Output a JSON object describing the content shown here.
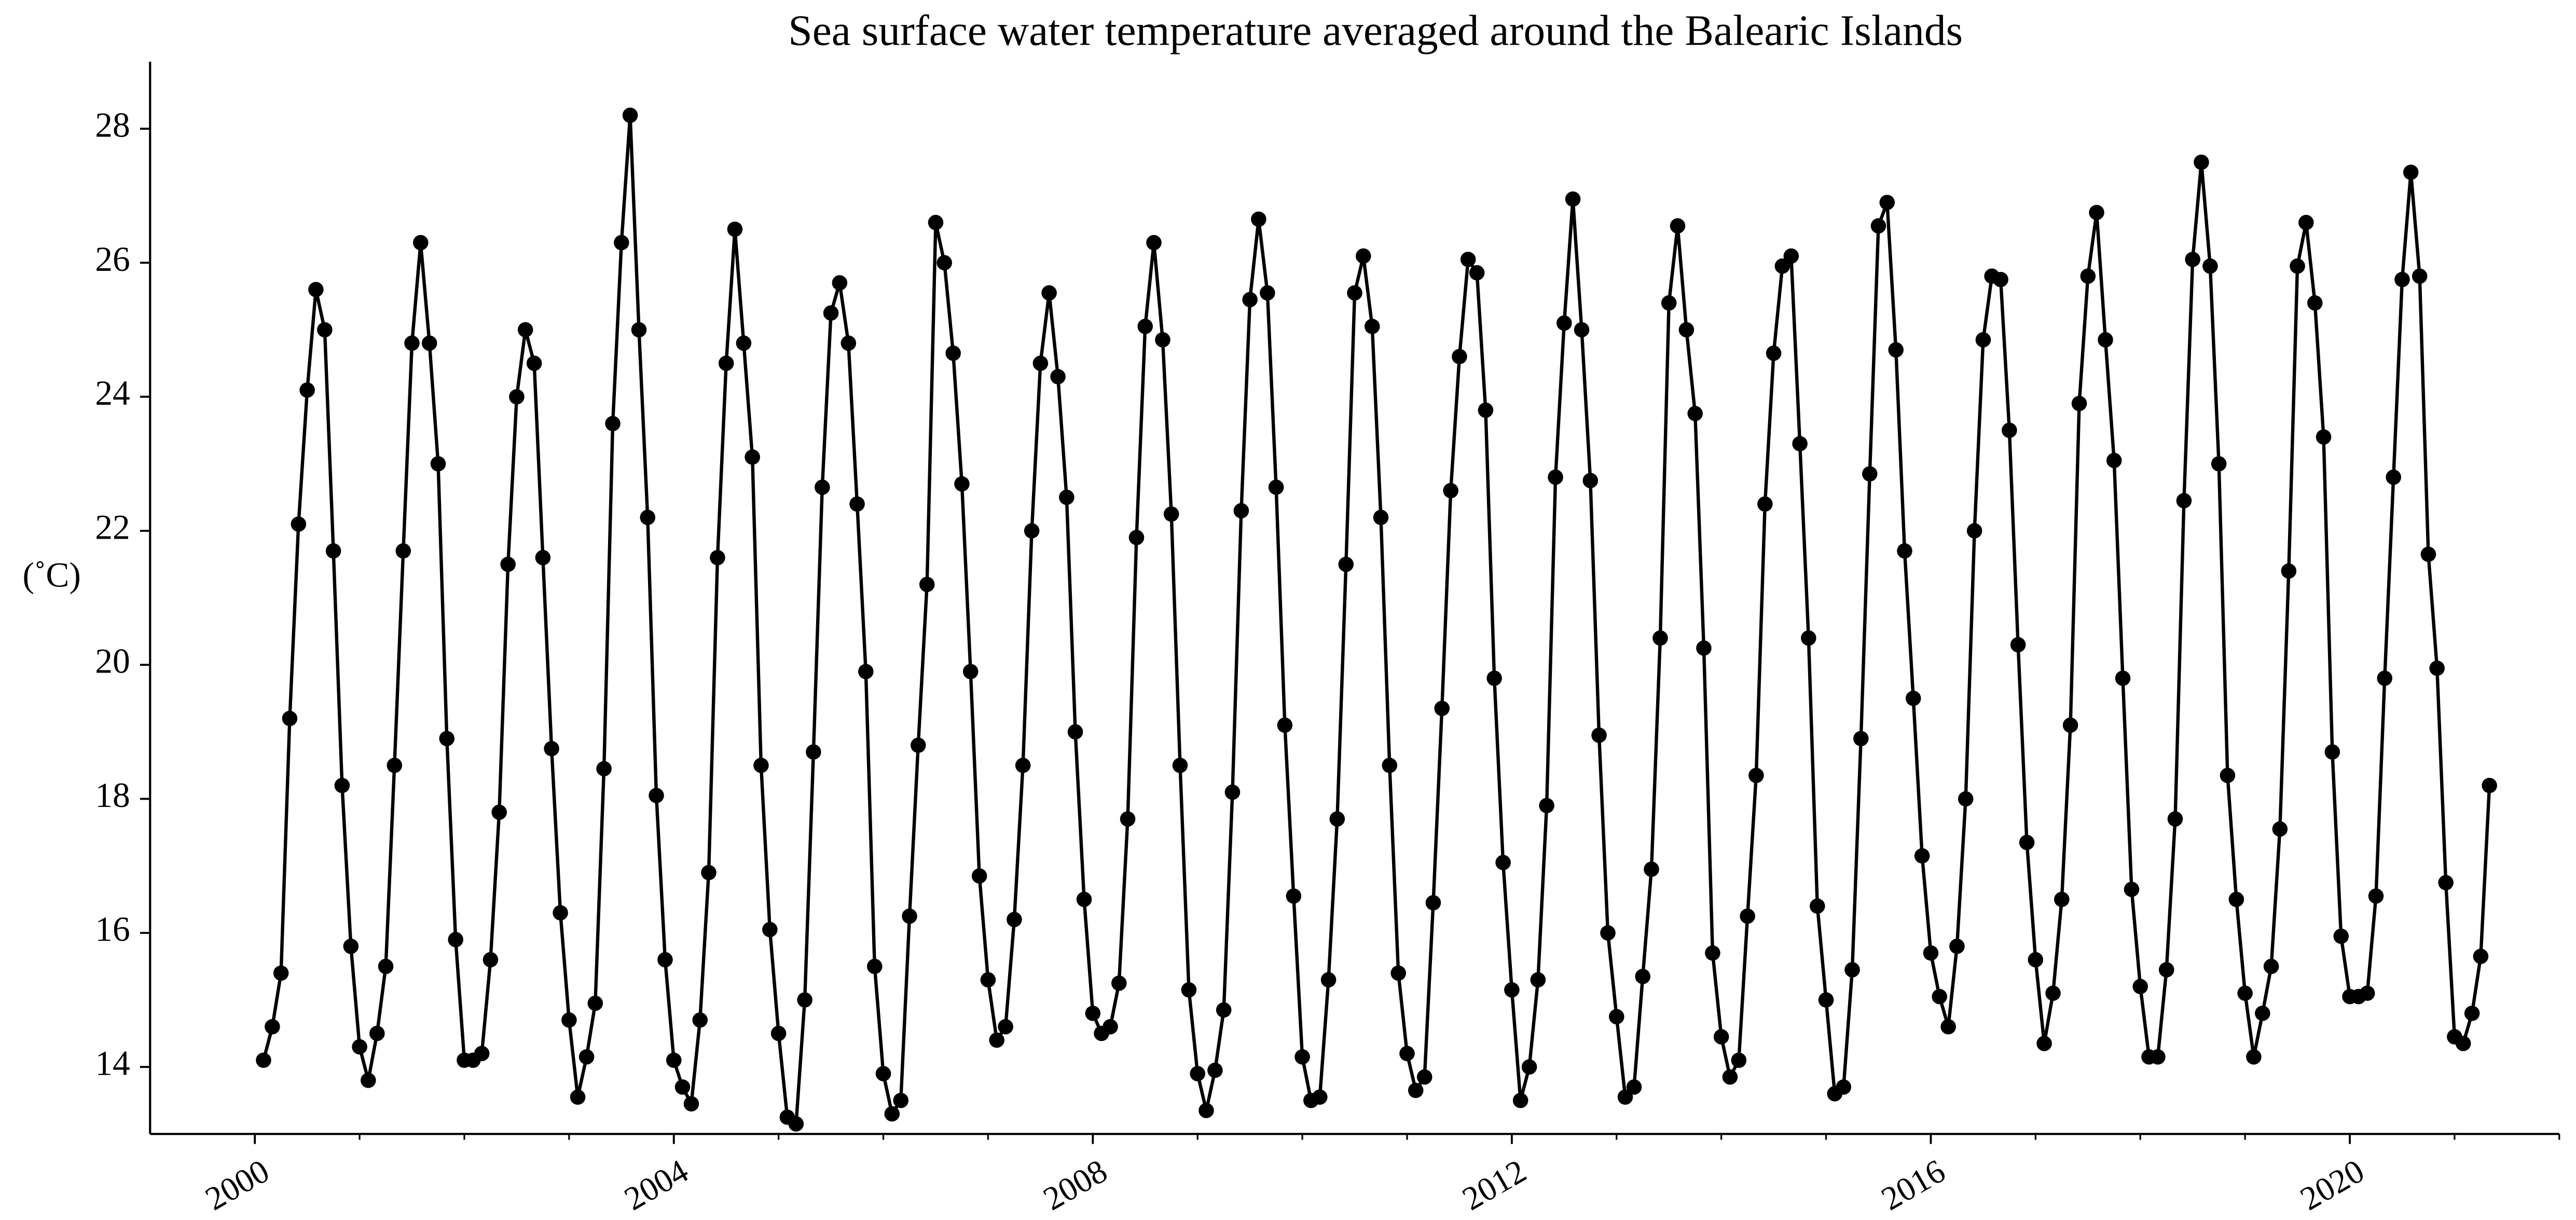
{
  "chart_data": {
    "type": "line",
    "title": "Sea surface water temperature averaged around the Balearic Islands",
    "ylabel": "(˚C)",
    "color": "#000000",
    "x": [
      2000.083,
      2000.167,
      2000.25,
      2000.333,
      2000.417,
      2000.5,
      2000.583,
      2000.667,
      2000.75,
      2000.833,
      2000.917,
      2001,
      2001.083,
      2001.167,
      2001.25,
      2001.333,
      2001.417,
      2001.5,
      2001.583,
      2001.667,
      2001.75,
      2001.833,
      2001.917,
      2002,
      2002.083,
      2002.167,
      2002.25,
      2002.333,
      2002.417,
      2002.5,
      2002.583,
      2002.667,
      2002.75,
      2002.833,
      2002.917,
      2003,
      2003.083,
      2003.167,
      2003.25,
      2003.333,
      2003.417,
      2003.5,
      2003.583,
      2003.667,
      2003.75,
      2003.833,
      2003.917,
      2004,
      2004.083,
      2004.167,
      2004.25,
      2004.333,
      2004.417,
      2004.5,
      2004.583,
      2004.667,
      2004.75,
      2004.833,
      2004.917,
      2005,
      2005.083,
      2005.167,
      2005.25,
      2005.333,
      2005.417,
      2005.5,
      2005.583,
      2005.667,
      2005.75,
      2005.833,
      2005.917,
      2006,
      2006.083,
      2006.167,
      2006.25,
      2006.333,
      2006.417,
      2006.5,
      2006.583,
      2006.667,
      2006.75,
      2006.833,
      2006.917,
      2007,
      2007.083,
      2007.167,
      2007.25,
      2007.333,
      2007.417,
      2007.5,
      2007.583,
      2007.667,
      2007.75,
      2007.833,
      2007.917,
      2008,
      2008.083,
      2008.167,
      2008.25,
      2008.333,
      2008.417,
      2008.5,
      2008.583,
      2008.667,
      2008.75,
      2008.833,
      2008.917,
      2009,
      2009.083,
      2009.167,
      2009.25,
      2009.333,
      2009.417,
      2009.5,
      2009.583,
      2009.667,
      2009.75,
      2009.833,
      2009.917,
      2010,
      2010.083,
      2010.167,
      2010.25,
      2010.333,
      2010.417,
      2010.5,
      2010.583,
      2010.667,
      2010.75,
      2010.833,
      2010.917,
      2011,
      2011.083,
      2011.167,
      2011.25,
      2011.333,
      2011.417,
      2011.5,
      2011.583,
      2011.667,
      2011.75,
      2011.833,
      2011.917,
      2012,
      2012.083,
      2012.167,
      2012.25,
      2012.333,
      2012.417,
      2012.5,
      2012.583,
      2012.667,
      2012.75,
      2012.833,
      2012.917,
      2013,
      2013.083,
      2013.167,
      2013.25,
      2013.333,
      2013.417,
      2013.5,
      2013.583,
      2013.667,
      2013.75,
      2013.833,
      2013.917,
      2014,
      2014.083,
      2014.167,
      2014.25,
      2014.333,
      2014.417,
      2014.5,
      2014.583,
      2014.667,
      2014.75,
      2014.833,
      2014.917,
      2015,
      2015.083,
      2015.167,
      2015.25,
      2015.333,
      2015.417,
      2015.5,
      2015.583,
      2015.667,
      2015.75,
      2015.833,
      2015.917,
      2016,
      2016.083,
      2016.167,
      2016.25,
      2016.333,
      2016.417,
      2016.5,
      2016.583,
      2016.667,
      2016.75,
      2016.833,
      2016.917,
      2017,
      2017.083,
      2017.167,
      2017.25,
      2017.333,
      2017.417,
      2017.5,
      2017.583,
      2017.667,
      2017.75,
      2017.833,
      2017.917,
      2018,
      2018.083,
      2018.167,
      2018.25,
      2018.333,
      2018.417,
      2018.5,
      2018.583,
      2018.667,
      2018.75,
      2018.833,
      2018.917,
      2019,
      2019.083,
      2019.167,
      2019.25,
      2019.333,
      2019.417,
      2019.5,
      2019.583,
      2019.667,
      2019.75,
      2019.833,
      2019.917,
      2020,
      2020.083,
      2020.167,
      2020.25,
      2020.333,
      2020.417,
      2020.5,
      2020.583,
      2020.667,
      2020.75,
      2020.833,
      2020.917,
      2021,
      2021.083,
      2021.167,
      2021.25,
      2021.333
    ],
    "values": [
      14.1,
      14.6,
      15.4,
      19.2,
      22.1,
      24.1,
      25.6,
      25.0,
      21.7,
      18.2,
      15.8,
      14.3,
      13.8,
      14.5,
      15.5,
      18.5,
      21.7,
      24.8,
      26.3,
      24.8,
      23.0,
      18.9,
      15.9,
      14.1,
      14.1,
      14.2,
      15.6,
      17.8,
      21.5,
      24.0,
      25.0,
      24.5,
      21.6,
      18.75,
      16.3,
      14.7,
      13.55,
      14.15,
      14.95,
      18.45,
      23.6,
      26.3,
      28.2,
      25.0,
      22.2,
      18.05,
      15.6,
      14.1,
      13.7,
      13.45,
      14.7,
      16.9,
      21.6,
      24.5,
      26.5,
      24.8,
      23.1,
      18.5,
      16.05,
      14.5,
      13.25,
      13.15,
      15.0,
      18.7,
      22.65,
      25.25,
      25.7,
      24.8,
      22.4,
      19.9,
      15.5,
      13.9,
      13.3,
      13.5,
      16.25,
      18.8,
      21.2,
      26.6,
      26.0,
      24.65,
      22.7,
      19.9,
      16.85,
      15.3,
      14.4,
      14.6,
      16.2,
      18.5,
      22.0,
      24.5,
      25.55,
      24.3,
      22.5,
      19.0,
      16.5,
      14.8,
      14.5,
      14.6,
      15.25,
      17.7,
      21.9,
      25.05,
      26.3,
      24.85,
      22.25,
      18.5,
      15.15,
      13.9,
      13.35,
      13.95,
      14.85,
      18.1,
      22.3,
      25.45,
      26.65,
      25.55,
      22.65,
      19.1,
      16.55,
      14.15,
      13.5,
      13.55,
      15.3,
      17.7,
      21.5,
      25.55,
      26.1,
      25.05,
      22.2,
      18.5,
      15.4,
      14.2,
      13.65,
      13.85,
      16.45,
      19.35,
      22.6,
      24.6,
      26.05,
      25.85,
      23.8,
      19.8,
      17.05,
      15.15,
      13.5,
      14.0,
      15.3,
      17.9,
      22.8,
      25.1,
      26.95,
      25.0,
      22.75,
      18.95,
      16.0,
      14.75,
      13.55,
      13.7,
      15.35,
      16.95,
      20.4,
      25.4,
      26.55,
      25.0,
      23.75,
      20.25,
      15.7,
      14.45,
      13.85,
      14.1,
      16.25,
      18.35,
      22.4,
      24.65,
      25.95,
      26.1,
      23.3,
      20.4,
      16.4,
      15.0,
      13.6,
      13.7,
      15.45,
      18.9,
      22.85,
      26.55,
      26.9,
      24.7,
      21.7,
      19.5,
      17.15,
      15.7,
      15.05,
      14.6,
      15.8,
      18.0,
      22.0,
      24.85,
      25.8,
      25.75,
      23.5,
      20.3,
      17.35,
      15.6,
      14.35,
      15.1,
      16.5,
      19.1,
      23.9,
      25.8,
      26.75,
      24.85,
      23.05,
      19.8,
      16.65,
      15.2,
      14.15,
      14.15,
      15.45,
      17.7,
      22.45,
      26.05,
      27.5,
      25.95,
      23.0,
      18.35,
      16.5,
      15.1,
      14.15,
      14.8,
      15.5,
      17.55,
      21.4,
      25.95,
      26.6,
      25.4,
      23.4,
      18.7,
      15.95,
      15.05,
      15.05,
      15.1,
      16.55,
      19.8,
      22.8,
      25.75,
      27.35,
      25.8,
      21.65,
      19.95,
      16.75,
      14.45,
      14.35,
      14.8,
      15.65,
      18.2
    ],
    "xlim": [
      1999,
      2022
    ],
    "xticks": [
      2000,
      2004,
      2008,
      2012,
      2016,
      2020
    ],
    "xminorticks": [
      2001,
      2002,
      2003,
      2005,
      2006,
      2007,
      2009,
      2010,
      2011,
      2013,
      2014,
      2015,
      2017,
      2018,
      2019,
      2021,
      2022
    ],
    "ylim": [
      13,
      29
    ],
    "yticks": [
      14,
      16,
      18,
      20,
      22,
      24,
      26,
      28
    ],
    "grid": false
  }
}
